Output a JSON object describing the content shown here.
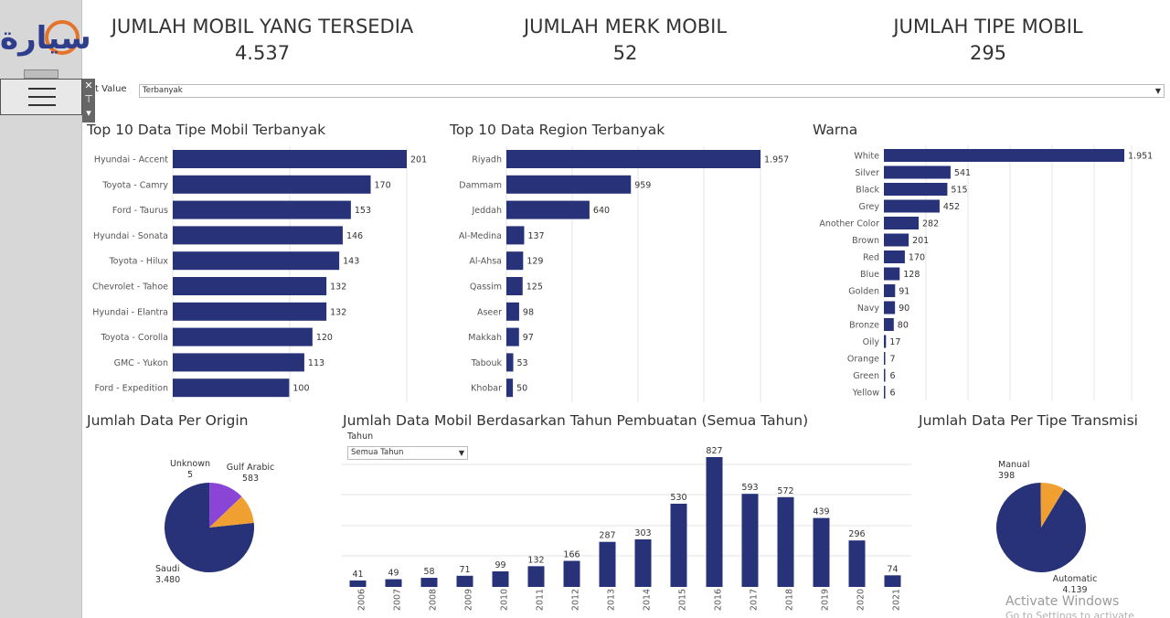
{
  "logo": {
    "text": "سيارة"
  },
  "menu": {
    "icon": "hamburger-icon",
    "controls": [
      "✕",
      "⊤",
      "▾"
    ]
  },
  "kpis": [
    {
      "title": "JUMLAH MOBIL YANG TERSEDIA",
      "value": "4.537"
    },
    {
      "title": "JUMLAH MERK MOBIL",
      "value": "52"
    },
    {
      "title": "JUMLAH TIPE MOBIL",
      "value": "295"
    }
  ],
  "sort_filter": {
    "label": "t Value",
    "value": "Terbanyak"
  },
  "year_filter": {
    "label": "Tahun",
    "value": "Semua Tahun"
  },
  "colors": {
    "bar": "#283278",
    "orange": "#f0a030",
    "purple": "#8a44d6",
    "grid": "#e6e6e6"
  },
  "panels": {
    "tipe": "Top 10 Data Tipe Mobil Terbanyak",
    "region": "Top 10 Data Region Terbanyak",
    "warna": "Warna",
    "origin": "Jumlah Data Per Origin",
    "tahun": "Jumlah Data Mobil Berdasarkan Tahun Pembuatan (Semua Tahun)",
    "transmisi": "Jumlah Data Per Tipe Transmisi"
  },
  "chart_data": [
    {
      "id": "tipe",
      "type": "bar",
      "orientation": "horizontal",
      "categories": [
        "Hyundai - Accent",
        "Toyota - Camry",
        "Ford - Taurus",
        "Hyundai - Sonata",
        "Toyota - Hilux",
        "Chevrolet - Tahoe",
        "Hyundai - Elantra",
        "Toyota - Corolla",
        "GMC - Yukon",
        "Ford - Expedition"
      ],
      "values": [
        201,
        170,
        153,
        146,
        143,
        132,
        132,
        120,
        113,
        100
      ],
      "labels": [
        "201",
        "170",
        "153",
        "146",
        "143",
        "132",
        "132",
        "120",
        "113",
        "100"
      ],
      "xlim": [
        0,
        201
      ],
      "grid": true
    },
    {
      "id": "region",
      "type": "bar",
      "orientation": "horizontal",
      "categories": [
        "Riyadh",
        "Dammam",
        "Jeddah",
        "Al-Medina",
        "Al-Ahsa",
        "Qassim",
        "Aseer",
        "Makkah",
        "Tabouk",
        "Khobar"
      ],
      "values": [
        1957,
        959,
        640,
        137,
        129,
        125,
        98,
        97,
        53,
        50
      ],
      "labels": [
        "1.957",
        "959",
        "640",
        "137",
        "129",
        "125",
        "98",
        "97",
        "53",
        "50"
      ],
      "xlim": [
        0,
        1957
      ],
      "grid": true
    },
    {
      "id": "warna",
      "type": "bar",
      "orientation": "horizontal",
      "categories": [
        "White",
        "Silver",
        "Black",
        "Grey",
        "Another Color",
        "Brown",
        "Red",
        "Blue",
        "Golden",
        "Navy",
        "Bronze",
        "Oily",
        "Orange",
        "Green",
        "Yellow"
      ],
      "values": [
        1951,
        541,
        515,
        452,
        282,
        201,
        170,
        128,
        91,
        90,
        80,
        17,
        7,
        6,
        6
      ],
      "labels": [
        "1.951",
        "541",
        "515",
        "452",
        "282",
        "201",
        "170",
        "128",
        "91",
        "90",
        "80",
        "17",
        "7",
        "6",
        "6"
      ],
      "xlim": [
        0,
        1951
      ],
      "grid": true
    },
    {
      "id": "origin",
      "type": "pie",
      "slices": [
        {
          "label": "Saudi",
          "value": 3480,
          "display": "3.480",
          "color": "#283278"
        },
        {
          "label": "Gulf Arabic",
          "value": 583,
          "display": "583",
          "color": "#8a44d6"
        },
        {
          "label": "Unknown",
          "value": 5,
          "display": "5",
          "color": "#f0a030"
        },
        {
          "label": "",
          "value": 469,
          "display": "",
          "color": "#f0a030"
        }
      ]
    },
    {
      "id": "tahun",
      "type": "bar",
      "orientation": "vertical",
      "categories": [
        "2006",
        "2007",
        "2008",
        "2009",
        "2010",
        "2011",
        "2012",
        "2013",
        "2014",
        "2015",
        "2016",
        "2017",
        "2018",
        "2019",
        "2020",
        "2021"
      ],
      "values": [
        41,
        49,
        58,
        71,
        99,
        132,
        166,
        287,
        303,
        530,
        827,
        593,
        572,
        439,
        296,
        74
      ],
      "ylim": [
        0,
        827
      ],
      "grid": true
    },
    {
      "id": "transmisi",
      "type": "pie",
      "slices": [
        {
          "label": "Automatic",
          "value": 4139,
          "display": "4.139",
          "color": "#283278"
        },
        {
          "label": "Manual",
          "value": 398,
          "display": "398",
          "color": "#f0a030"
        }
      ]
    }
  ],
  "watermark": {
    "line1": "Activate Windows",
    "line2": "Go to Settings to activate Windows."
  }
}
